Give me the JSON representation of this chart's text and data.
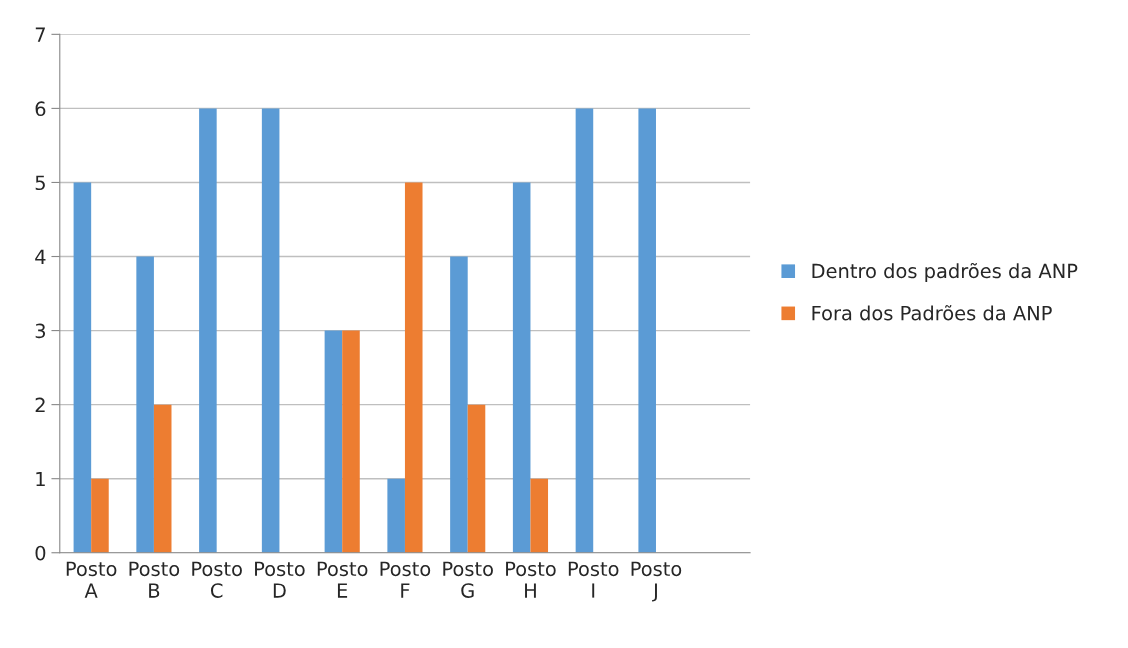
{
  "chart_data": {
    "type": "bar",
    "categories": [
      "Posto\nA",
      "Posto\nB",
      "Posto\nC",
      "Posto\nD",
      "Posto\nE",
      "Posto\nF",
      "Posto\nG",
      "Posto\nH",
      "Posto\nI",
      "Posto\nJ",
      null
    ],
    "series": [
      {
        "name": "Dentro dos padrões da ANP",
        "color": "#5b9bd5",
        "values": [
          5,
          4,
          6,
          6,
          3,
          1,
          4,
          5,
          6,
          6,
          null
        ]
      },
      {
        "name": "Fora dos Padrões da ANP",
        "color": "#ed7d31",
        "values": [
          1,
          2,
          0,
          0,
          3,
          5,
          2,
          1,
          0,
          0,
          null
        ]
      }
    ],
    "ylim": [
      0,
      7
    ],
    "yticks": [
      0,
      1,
      2,
      3,
      4,
      5,
      6,
      7
    ],
    "grid": "y",
    "legend": "right"
  }
}
